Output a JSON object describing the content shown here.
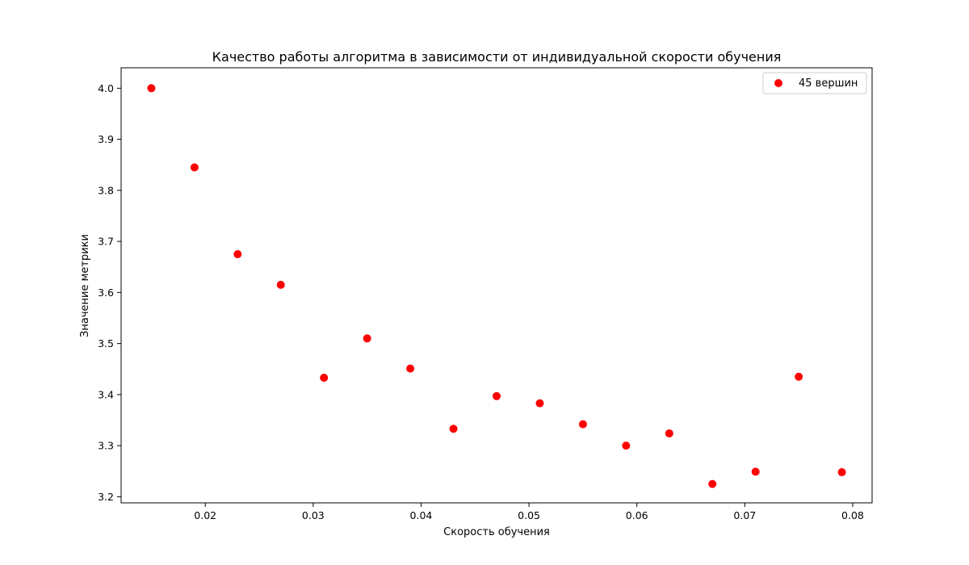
{
  "chart_data": {
    "type": "scatter",
    "title": "Качество работы алгоритма в зависимости от индивидуальной скорости обучения",
    "xlabel": "Скорость обучения",
    "ylabel": "Значение метрики",
    "xlim": [
      0.0122,
      0.0818
    ],
    "ylim": [
      3.188,
      4.04
    ],
    "x_ticks": [
      0.02,
      0.03,
      0.04,
      0.05,
      0.06,
      0.07,
      0.08
    ],
    "x_tick_labels": [
      "0.02",
      "0.03",
      "0.04",
      "0.05",
      "0.06",
      "0.07",
      "0.08"
    ],
    "y_ticks": [
      3.2,
      3.3,
      3.4,
      3.5,
      3.6,
      3.7,
      3.8,
      3.9,
      4.0
    ],
    "y_tick_labels": [
      "3.2",
      "3.3",
      "3.4",
      "3.5",
      "3.6",
      "3.7",
      "3.8",
      "3.9",
      "4.0"
    ],
    "grid": false,
    "legend_position": "top-right",
    "series": [
      {
        "name": "45 вершин",
        "color": "#ff0000",
        "marker": "circle",
        "x": [
          0.015,
          0.019,
          0.023,
          0.027,
          0.031,
          0.035,
          0.039,
          0.043,
          0.047,
          0.051,
          0.055,
          0.059,
          0.063,
          0.067,
          0.071,
          0.075,
          0.079
        ],
        "y": [
          4.0,
          3.845,
          3.675,
          3.615,
          3.433,
          3.51,
          3.451,
          3.333,
          3.397,
          3.383,
          3.342,
          3.3,
          3.324,
          3.225,
          3.249,
          3.435,
          3.248
        ]
      }
    ]
  }
}
